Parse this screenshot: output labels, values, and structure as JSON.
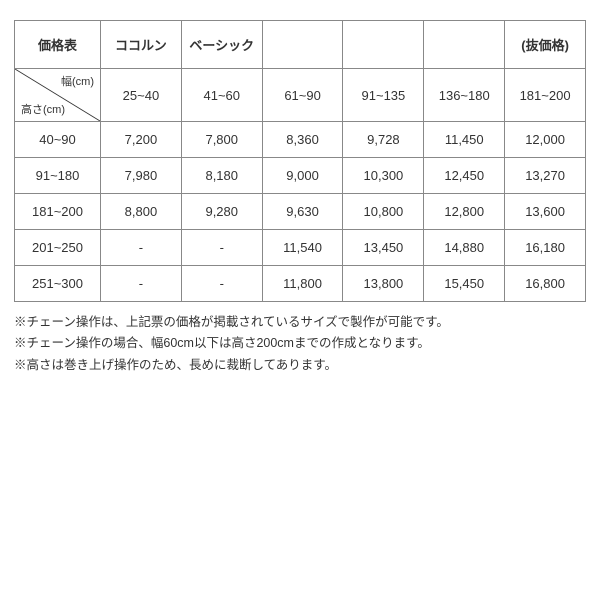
{
  "table": {
    "header": {
      "title": "価格表",
      "col2": "ココルン",
      "col3": "ベーシック",
      "col4": "",
      "col5": "",
      "col6": "",
      "col7": "(抜価格)"
    },
    "diag": {
      "top": "幅(cm)",
      "bottom": "高さ(cm)"
    },
    "widths": [
      "25~40",
      "41~60",
      "61~90",
      "91~135",
      "136~180",
      "181~200"
    ],
    "heights": [
      "40~90",
      "91~180",
      "181~200",
      "201~250",
      "251~300"
    ],
    "rows": [
      [
        "7,200",
        "7,800",
        "8,360",
        "9,728",
        "11,450",
        "12,000"
      ],
      [
        "7,980",
        "8,180",
        "9,000",
        "10,300",
        "12,450",
        "13,270"
      ],
      [
        "8,800",
        "9,280",
        "9,630",
        "10,800",
        "12,800",
        "13,600"
      ],
      [
        "-",
        "-",
        "11,540",
        "13,450",
        "14,880",
        "16,180"
      ],
      [
        "-",
        "-",
        "11,800",
        "13,800",
        "15,450",
        "16,800"
      ]
    ]
  },
  "notes": [
    "※チェーン操作は、上記票の価格が掲載されているサイズで製作が可能です。",
    "※チェーン操作の場合、幅60cm以下は高さ200cmまでの作成となります。",
    "※高さは巻き上げ操作のため、長めに裁断してあります。"
  ]
}
